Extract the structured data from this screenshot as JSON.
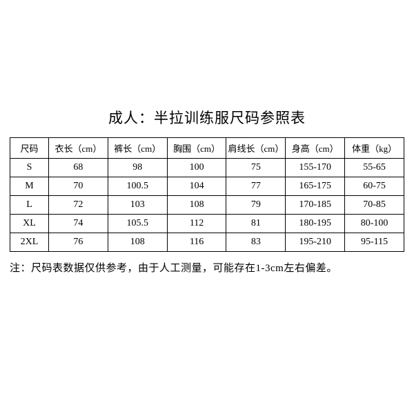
{
  "title": "成人：半拉训练服尺码参照表",
  "columns": [
    "尺码",
    "衣长（cm）",
    "裤长（cm）",
    "胸围（cm）",
    "肩线长（cm）",
    "身高（cm）",
    "体重（kg）"
  ],
  "rows": [
    [
      "S",
      "68",
      "98",
      "100",
      "75",
      "155-170",
      "55-65"
    ],
    [
      "M",
      "70",
      "100.5",
      "104",
      "77",
      "165-175",
      "60-75"
    ],
    [
      "L",
      "72",
      "103",
      "108",
      "79",
      "170-185",
      "70-85"
    ],
    [
      "XL",
      "74",
      "105.5",
      "112",
      "81",
      "180-195",
      "80-100"
    ],
    [
      "2XL",
      "76",
      "108",
      "116",
      "83",
      "195-210",
      "95-115"
    ]
  ],
  "note": "注：尺码表数据仅供参考，由于人工测量，可能存在1-3cm左右偏差。",
  "style": {
    "background_color": "#ffffff",
    "text_color": "#000000",
    "border_color": "#000000",
    "title_fontsize": 21,
    "header_fontsize": 13,
    "cell_fontsize": 14,
    "note_fontsize": 15,
    "font_family": "SimSun"
  }
}
